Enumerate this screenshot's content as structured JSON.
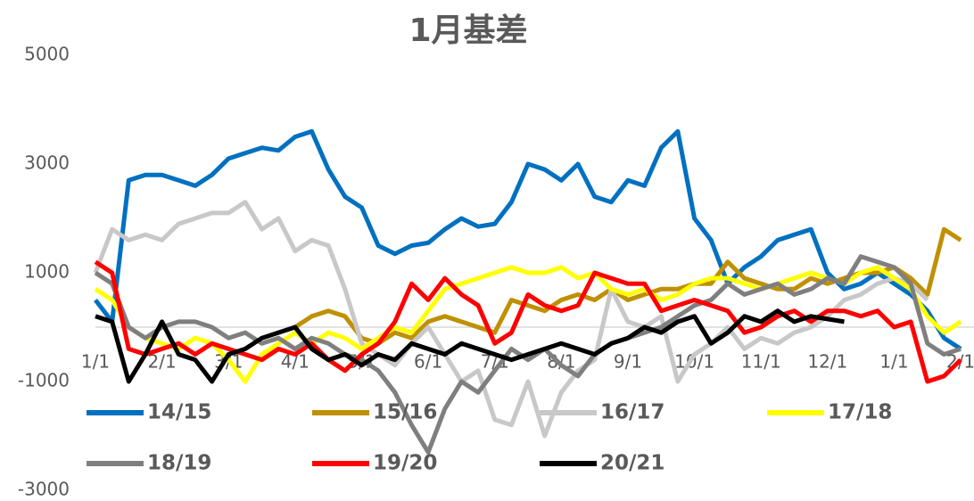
{
  "chart_data": {
    "type": "line",
    "title": "1月基差",
    "x": [
      0,
      0.25,
      0.5,
      0.75,
      1,
      1.25,
      1.5,
      1.75,
      2,
      2.25,
      2.5,
      2.75,
      3,
      3.25,
      3.5,
      3.75,
      4,
      4.25,
      4.5,
      4.75,
      5,
      5.25,
      5.5,
      5.75,
      6,
      6.25,
      6.5,
      6.75,
      7,
      7.25,
      7.5,
      7.75,
      8,
      8.25,
      8.5,
      8.75,
      9,
      9.25,
      9.5,
      9.75,
      10,
      10.25,
      10.5,
      10.75,
      11,
      11.25,
      11.5,
      11.75,
      12,
      12.25,
      12.5,
      12.75,
      13
    ],
    "xlim": [
      0,
      13.2
    ],
    "xticks": [
      {
        "value": 0,
        "label": "1/1"
      },
      {
        "value": 1,
        "label": "2/1"
      },
      {
        "value": 2,
        "label": "3/1"
      },
      {
        "value": 3,
        "label": "4/1"
      },
      {
        "value": 4,
        "label": "5/1"
      },
      {
        "value": 5,
        "label": "6/1"
      },
      {
        "value": 6,
        "label": "7/1"
      },
      {
        "value": 7,
        "label": "8/1"
      },
      {
        "value": 8,
        "label": "9/1"
      },
      {
        "value": 9,
        "label": "10/1"
      },
      {
        "value": 10,
        "label": "11/1"
      },
      {
        "value": 11,
        "label": "12/1"
      },
      {
        "value": 12,
        "label": "1/1"
      },
      {
        "value": 13,
        "label": "2/1"
      }
    ],
    "ylim": [
      -3000,
      5000
    ],
    "yticks": [
      5000,
      3000,
      1000,
      -1000,
      -3000
    ],
    "grid": false,
    "series": [
      {
        "name": "14/15",
        "color": "#0070c0",
        "values": [
          500,
          100,
          2700,
          2800,
          2800,
          2700,
          2600,
          2800,
          3100,
          3200,
          3300,
          3250,
          3500,
          3600,
          2900,
          2400,
          2200,
          1500,
          1350,
          1500,
          1550,
          1800,
          2000,
          1850,
          1900,
          2300,
          3000,
          2900,
          2700,
          3000,
          2400,
          2300,
          2700,
          2600,
          3300,
          3600,
          2000,
          1600,
          800,
          1100,
          1300,
          1600,
          1700,
          1800,
          1000,
          700,
          800,
          1000,
          800,
          600,
          300,
          -200,
          -400
        ]
      },
      {
        "name": "15/16",
        "color": "#bf9000",
        "values": [
          null,
          null,
          null,
          null,
          null,
          null,
          null,
          null,
          null,
          null,
          null,
          null,
          0,
          200,
          300,
          200,
          -200,
          -300,
          -100,
          -200,
          100,
          200,
          100,
          0,
          -100,
          500,
          400,
          300,
          500,
          600,
          500,
          700,
          500,
          600,
          700,
          700,
          800,
          800,
          1200,
          900,
          800,
          700,
          700,
          900,
          800,
          900,
          1000,
          1000,
          1100,
          900,
          600,
          1800,
          1600
        ]
      },
      {
        "name": "16/17",
        "color": "#c8c8c8",
        "values": [
          1000,
          1800,
          1600,
          1700,
          1600,
          1900,
          2000,
          2100,
          2100,
          2300,
          1800,
          2000,
          1400,
          1600,
          1500,
          700,
          -300,
          -500,
          -700,
          -300,
          0,
          -500,
          -1000,
          -800,
          -1700,
          -1800,
          -1000,
          -2000,
          -1200,
          -800,
          -600,
          700,
          100,
          0,
          200,
          -1000,
          -500,
          -300,
          0,
          -400,
          -200,
          -300,
          -100,
          0,
          200,
          500,
          600,
          800,
          900,
          800,
          500,
          null,
          null
        ]
      },
      {
        "name": "17/18",
        "color": "#ffff00",
        "values": [
          700,
          500,
          0,
          -200,
          -300,
          -400,
          -200,
          -300,
          -600,
          -1000,
          -500,
          -300,
          -100,
          -300,
          -100,
          -200,
          -400,
          -200,
          0,
          -100,
          300,
          700,
          800,
          900,
          1000,
          1100,
          1000,
          1000,
          1100,
          900,
          1000,
          700,
          600,
          700,
          500,
          600,
          800,
          900,
          900,
          800,
          700,
          800,
          900,
          1000,
          900,
          800,
          1000,
          1100,
          900,
          700,
          200,
          -100,
          100
        ]
      },
      {
        "name": "18/19",
        "color": "#7f7f7f",
        "values": [
          1000,
          800,
          0,
          -200,
          0,
          100,
          100,
          0,
          -200,
          -100,
          -300,
          -200,
          -400,
          -200,
          -300,
          -500,
          -600,
          -800,
          -1200,
          -1800,
          -2300,
          -1500,
          -1000,
          -1200,
          -800,
          -400,
          -600,
          -400,
          -700,
          -900,
          -500,
          -300,
          -200,
          -100,
          0,
          200,
          400,
          500,
          800,
          600,
          700,
          800,
          600,
          700,
          900,
          800,
          1300,
          1200,
          1100,
          800,
          -300,
          -500,
          -400
        ]
      },
      {
        "name": "19/20",
        "color": "#ff0000",
        "values": [
          1200,
          1000,
          -400,
          -500,
          -400,
          -300,
          -500,
          -300,
          -400,
          -500,
          -600,
          -400,
          -500,
          -300,
          -600,
          -800,
          -500,
          -300,
          100,
          800,
          500,
          900,
          600,
          400,
          -300,
          -100,
          600,
          400,
          300,
          400,
          1000,
          900,
          800,
          800,
          300,
          400,
          500,
          400,
          300,
          -100,
          0,
          200,
          300,
          100,
          300,
          300,
          200,
          300,
          0,
          100,
          -1000,
          -900,
          -600
        ]
      },
      {
        "name": "20/21",
        "color": "#000000",
        "values": [
          200,
          100,
          -1000,
          -500,
          100,
          -500,
          -600,
          -1000,
          -500,
          -400,
          -200,
          -100,
          0,
          -400,
          -600,
          -500,
          -700,
          -500,
          -600,
          -300,
          -400,
          -500,
          -300,
          -400,
          -500,
          -600,
          -500,
          -400,
          -300,
          -400,
          -500,
          -300,
          -200,
          0,
          -100,
          100,
          200,
          -300,
          -100,
          200,
          100,
          300,
          100,
          200,
          150,
          100,
          null,
          null,
          null,
          null,
          null,
          null,
          null
        ]
      }
    ]
  }
}
